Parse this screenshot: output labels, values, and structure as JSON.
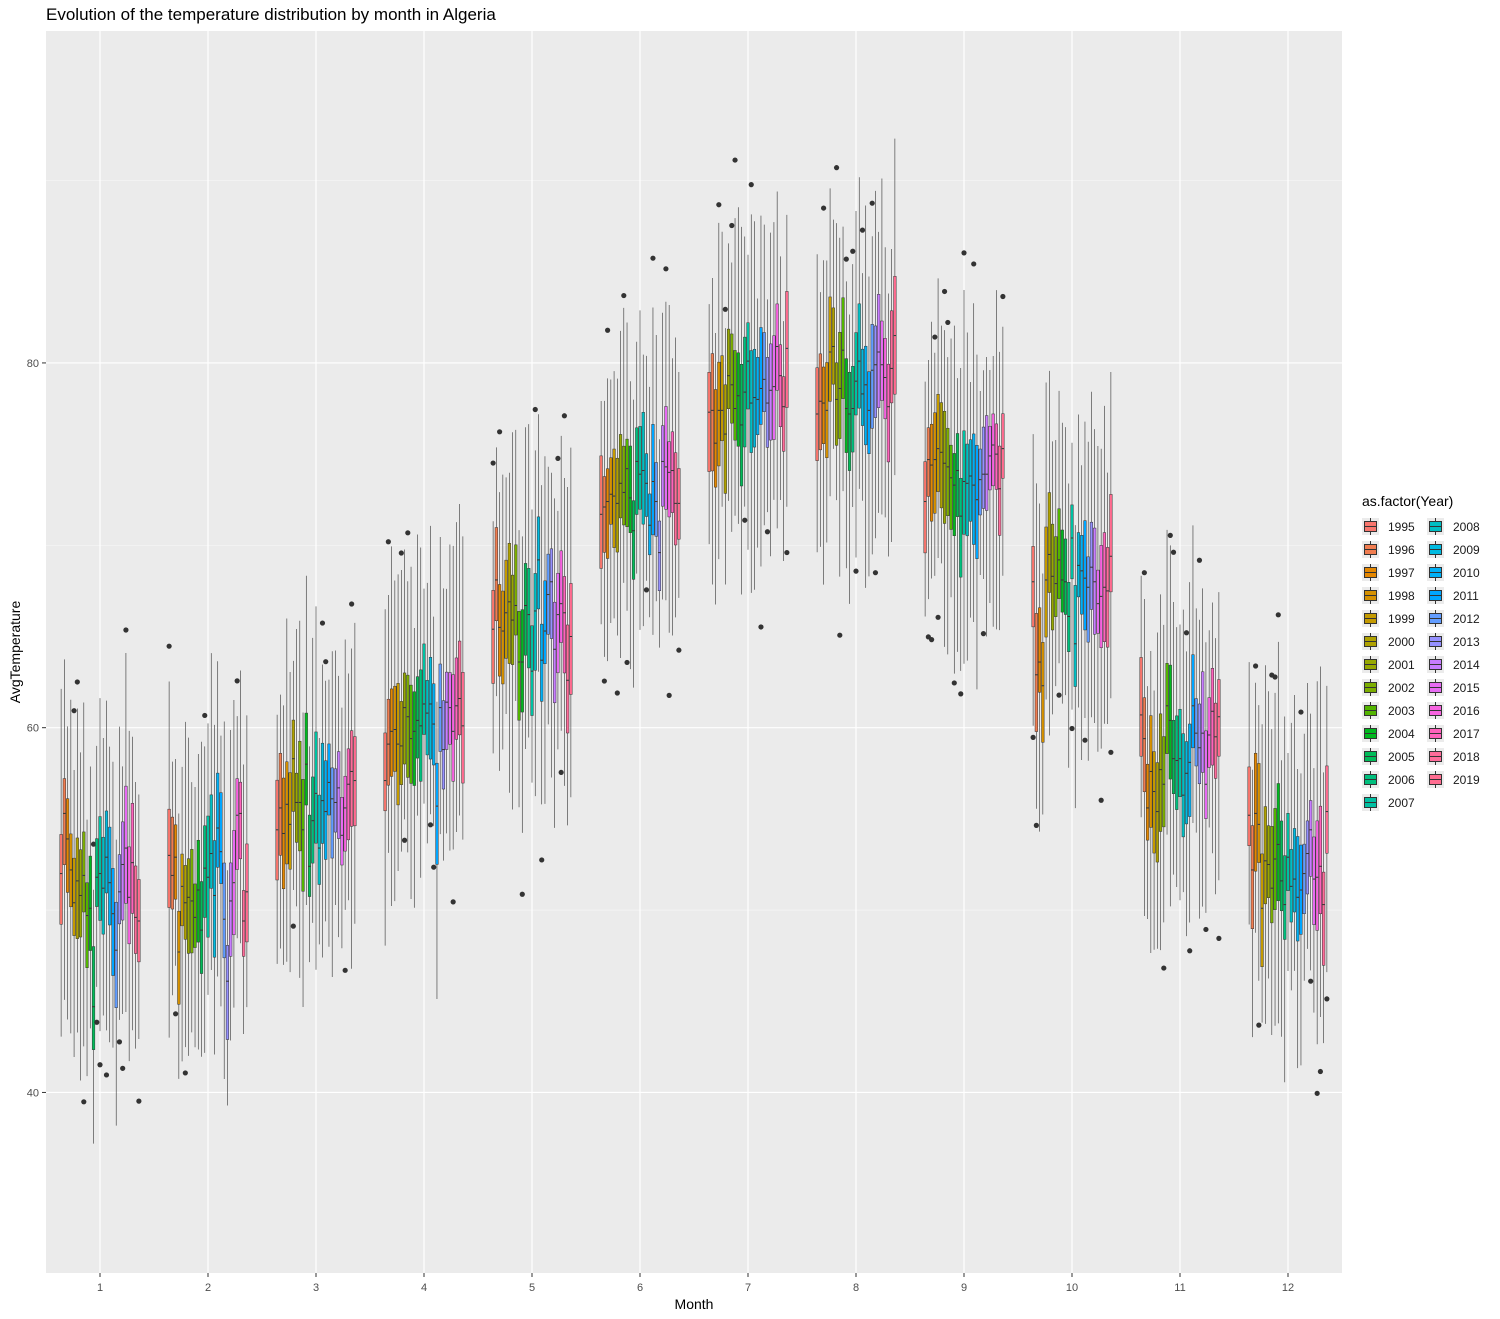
{
  "chart_data": {
    "type": "boxplot",
    "title": "Evolution of the temperature distribution by month in Algeria",
    "xlabel": "Month",
    "ylabel": "AvgTemperature",
    "categories": [
      "1",
      "2",
      "3",
      "4",
      "5",
      "6",
      "7",
      "8",
      "9",
      "10",
      "11",
      "12"
    ],
    "yticks": [
      40,
      60,
      80
    ],
    "ylim": [
      30.1,
      98.2
    ],
    "grid": true,
    "legend": {
      "title": "as.factor(Year)",
      "position": "right",
      "entries": [
        "1995",
        "1996",
        "1997",
        "1998",
        "1999",
        "2000",
        "2001",
        "2002",
        "2003",
        "2004",
        "2005",
        "2006",
        "2007",
        "2008",
        "2009",
        "2010",
        "2011",
        "2012",
        "2013",
        "2014",
        "2015",
        "2016",
        "2017",
        "2018",
        "2019"
      ],
      "colors": [
        "#F8766D",
        "#F17D50",
        "#E58700",
        "#D69100",
        "#C49A00",
        "#AFA100",
        "#97A800",
        "#7CAE00",
        "#53B400",
        "#00B81F",
        "#00BC59",
        "#00BF7D",
        "#00C0A2",
        "#00BFC4",
        "#00BAE0",
        "#00B0F6",
        "#00A5FF",
        "#619CFF",
        "#9590FF",
        "#C77CFF",
        "#E76BF3",
        "#F763E0",
        "#FF62BC",
        "#FF6C9A",
        "#FF6C90"
      ]
    },
    "series_by_month": [
      {
        "month": "1",
        "medians": [
          52.0,
          55.3,
          53.9,
          52.2,
          50.4,
          51.6,
          50.8,
          51.9,
          49.7,
          50.1,
          44.7,
          51.8,
          52.0,
          51.2,
          52.9,
          51.5,
          49.8,
          47.8,
          51.0,
          52.5,
          53.4,
          50.7,
          52.6,
          49.6,
          49.4
        ]
      },
      {
        "month": "2",
        "medians": [
          53.0,
          51.9,
          52.9,
          47.7,
          51.3,
          50.4,
          50.7,
          50.5,
          49.6,
          51.1,
          48.9,
          52.3,
          51.8,
          53.1,
          50.8,
          54.5,
          53.2,
          49.5,
          46.1,
          50.5,
          51.5,
          55.2,
          55.3,
          49.4,
          51.0
        ]
      },
      {
        "month": "3",
        "medians": [
          54.4,
          55.6,
          54.2,
          55.8,
          54.7,
          58.3,
          55.9,
          55.9,
          54.4,
          58.0,
          52.4,
          54.9,
          56.4,
          53.4,
          56.0,
          55.4,
          57.0,
          56.1,
          55.9,
          56.7,
          54.1,
          55.6,
          56.9,
          57.6,
          57.1
        ]
      },
      {
        "month": "4",
        "medians": [
          57.1,
          59.1,
          59.8,
          59.9,
          59.1,
          59.0,
          61.1,
          60.6,
          59.4,
          59.8,
          60.4,
          60.1,
          61.3,
          60.8,
          61.3,
          60.2,
          55.7,
          61.1,
          58.8,
          61.4,
          61.1,
          59.8,
          61.2,
          61.6,
          60.1
        ]
      },
      {
        "month": "5",
        "medians": [
          65.4,
          68.1,
          65.5,
          65.3,
          66.3,
          66.9,
          65.9,
          66.7,
          63.6,
          63.6,
          66.7,
          66.2,
          63.1,
          66.4,
          69.2,
          63.7,
          65.3,
          67.3,
          68.0,
          64.3,
          66.2,
          66.8,
          66.3,
          62.6,
          65.0
        ]
      },
      {
        "month": "6",
        "medians": [
          71.7,
          72.1,
          72.4,
          72.8,
          72.7,
          72.3,
          73.4,
          72.9,
          74.2,
          72.6,
          70.8,
          74.6,
          73.9,
          74.1,
          73.4,
          71.1,
          73.5,
          72.4,
          69.6,
          74.6,
          74.3,
          74.0,
          74.1,
          72.3,
          72.3
        ]
      },
      {
        "month": "7",
        "medians": [
          77.3,
          77.4,
          75.6,
          77.4,
          77.4,
          76.1,
          79.3,
          78.8,
          77.5,
          78.2,
          76.6,
          78.4,
          80.1,
          77.8,
          78.1,
          78.0,
          78.6,
          79.1,
          77.8,
          78.5,
          78.7,
          80.9,
          79.3,
          77.6,
          80.8
        ]
      },
      {
        "month": "8",
        "medians": [
          77.2,
          77.9,
          77.8,
          77.4,
          80.6,
          80.9,
          78.0,
          78.6,
          80.7,
          77.5,
          77.2,
          77.5,
          79.0,
          80.1,
          78.3,
          78.8,
          77.4,
          79.6,
          79.9,
          80.6,
          79.9,
          79.2,
          77.6,
          79.7,
          81.5
        ]
      },
      {
        "month": "9",
        "medians": [
          72.4,
          74.7,
          74.4,
          74.7,
          75.3,
          75.1,
          74.5,
          74.3,
          73.7,
          73.3,
          74.1,
          71.6,
          73.5,
          73.4,
          73.8,
          73.3,
          72.5,
          73.6,
          73.9,
          73.9,
          74.9,
          75.5,
          75.0,
          73.1,
          75.3
        ]
      },
      {
        "month": "10",
        "medians": [
          68.0,
          62.9,
          63.6,
          62.3,
          68.1,
          69.5,
          68.3,
          67.9,
          69.2,
          68.1,
          68.0,
          66.1,
          70.4,
          64.6,
          68.9,
          68.6,
          68.2,
          67.7,
          68.8,
          68.0,
          66.8,
          67.2,
          67.7,
          67.5,
          69.4
        ]
      },
      {
        "month": "11",
        "medians": [
          60.7,
          59.4,
          55.6,
          57.6,
          56.5,
          55.4,
          57.7,
          56.9,
          61.2,
          60.4,
          58.3,
          58.2,
          58.3,
          56.3,
          57.5,
          58.1,
          61.2,
          59.7,
          58.9,
          59.7,
          56.9,
          59.6,
          60.9,
          59.5,
          60.6
        ]
      },
      {
        "month": "12",
        "medians": [
          55.2,
          52.2,
          55.3,
          54.7,
          50.1,
          52.7,
          52.5,
          51.2,
          52.8,
          53.6,
          51.6,
          50.3,
          52.9,
          51.3,
          51.7,
          50.7,
          51.1,
          52.0,
          53.1,
          54.4,
          51.7,
          51.8,
          52.4,
          50.3,
          55.4
        ]
      }
    ]
  }
}
